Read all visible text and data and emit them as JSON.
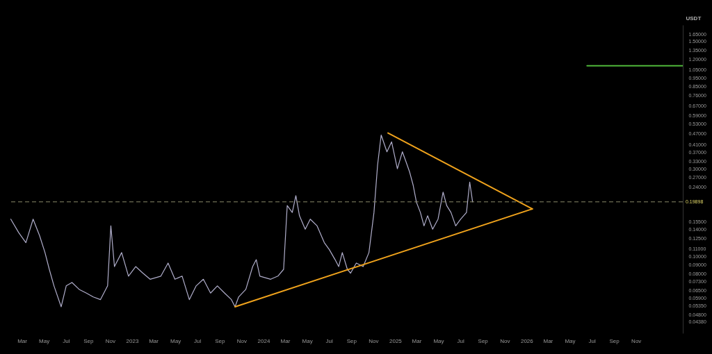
{
  "chart_data": {
    "type": "line",
    "ylabel": "USDT",
    "log": "y",
    "xlim": [
      "2022-01-27",
      "2027-03-10"
    ],
    "ylim": [
      0.038,
      1.85
    ],
    "xticks": [
      {
        "value": "2022-03",
        "label": "Mar"
      },
      {
        "value": "2022-05",
        "label": "May"
      },
      {
        "value": "2022-07",
        "label": "Jul"
      },
      {
        "value": "2022-09",
        "label": "Sep"
      },
      {
        "value": "2022-11",
        "label": "Nov"
      },
      {
        "value": "2023-01",
        "label": "2023"
      },
      {
        "value": "2023-03",
        "label": "Mar"
      },
      {
        "value": "2023-05",
        "label": "May"
      },
      {
        "value": "2023-07",
        "label": "Jul"
      },
      {
        "value": "2023-09",
        "label": "Sep"
      },
      {
        "value": "2023-11",
        "label": "Nov"
      },
      {
        "value": "2024-01",
        "label": "2024"
      },
      {
        "value": "2024-03",
        "label": "Mar"
      },
      {
        "value": "2024-05",
        "label": "May"
      },
      {
        "value": "2024-07",
        "label": "Jul"
      },
      {
        "value": "2024-09",
        "label": "Sep"
      },
      {
        "value": "2024-11",
        "label": "Nov"
      },
      {
        "value": "2025-01",
        "label": "2025"
      },
      {
        "value": "2025-03",
        "label": "Mar"
      },
      {
        "value": "2025-05",
        "label": "May"
      },
      {
        "value": "2025-07",
        "label": "Jul"
      },
      {
        "value": "2025-09",
        "label": "Sep"
      },
      {
        "value": "2025-11",
        "label": "Nov"
      },
      {
        "value": "2026-01",
        "label": "2026"
      },
      {
        "value": "2026-03",
        "label": "Mar"
      },
      {
        "value": "2026-05",
        "label": "May"
      },
      {
        "value": "2026-07",
        "label": "Jul"
      },
      {
        "value": "2026-09",
        "label": "Sep"
      },
      {
        "value": "2026-11",
        "label": "Nov"
      }
    ],
    "yticks": [
      {
        "value": 1.65,
        "label": "1.65000"
      },
      {
        "value": 1.5,
        "label": "1.50000"
      },
      {
        "value": 1.35,
        "label": "1.35000"
      },
      {
        "value": 1.2,
        "label": "1.20000"
      },
      {
        "value": 1.05,
        "label": "1.05000"
      },
      {
        "value": 0.95,
        "label": "0.95000"
      },
      {
        "value": 0.85,
        "label": "0.85000"
      },
      {
        "value": 0.76,
        "label": "0.76000"
      },
      {
        "value": 0.67,
        "label": "0.67000"
      },
      {
        "value": 0.59,
        "label": "0.59000"
      },
      {
        "value": 0.53,
        "label": "0.53000"
      },
      {
        "value": 0.47,
        "label": "0.47000"
      },
      {
        "value": 0.41,
        "label": "0.41000"
      },
      {
        "value": 0.37,
        "label": "0.37000"
      },
      {
        "value": 0.33,
        "label": "0.33000"
      },
      {
        "value": 0.3,
        "label": "0.30000"
      },
      {
        "value": 0.27,
        "label": "0.27000"
      },
      {
        "value": 0.24,
        "label": "0.24000"
      },
      {
        "value": 0.155,
        "label": "0.15500"
      },
      {
        "value": 0.14,
        "label": "0.14000"
      },
      {
        "value": 0.125,
        "label": "0.12500"
      },
      {
        "value": 0.11,
        "label": "0.11000"
      },
      {
        "value": 0.1,
        "label": "0.10000"
      },
      {
        "value": 0.09,
        "label": "0.09000"
      },
      {
        "value": 0.08,
        "label": "0.08000"
      },
      {
        "value": 0.073,
        "label": "0.07300"
      },
      {
        "value": 0.065,
        "label": "0.06500"
      },
      {
        "value": 0.059,
        "label": "0.05900"
      },
      {
        "value": 0.0535,
        "label": "0.05350"
      },
      {
        "value": 0.048,
        "label": "0.04800"
      },
      {
        "value": 0.0438,
        "label": "0.04380"
      }
    ],
    "grid": false,
    "marker": "none",
    "line_style": "solid",
    "ref_lines": [
      {
        "axis": "y",
        "value": 0.19898,
        "label": "0.19898",
        "color": "#8a8a6a",
        "line_style": "dashed"
      }
    ],
    "series": [
      {
        "color": "#b0aecb",
        "x": [
          "2022-01-28",
          "2022-02-19",
          "2022-03-11",
          "2022-03-31",
          "2022-04-18",
          "2022-05-03",
          "2022-05-15",
          "2022-05-28",
          "2022-06-17",
          "2022-07-01",
          "2022-07-17",
          "2022-08-06",
          "2022-08-26",
          "2022-09-14",
          "2022-10-04",
          "2022-10-24",
          "2022-11-02",
          "2022-11-12",
          "2022-12-02",
          "2022-12-21",
          "2023-01-10",
          "2023-01-30",
          "2023-02-19",
          "2023-03-21",
          "2023-04-10",
          "2023-04-29",
          "2023-05-19",
          "2023-06-08",
          "2023-06-27",
          "2023-07-17",
          "2023-08-06",
          "2023-08-25",
          "2023-09-14",
          "2023-10-03",
          "2023-10-13",
          "2023-10-23",
          "2023-11-12",
          "2023-12-01",
          "2023-12-11",
          "2023-12-21",
          "2024-01-20",
          "2024-02-09",
          "2024-02-25",
          "2024-03-06",
          "2024-03-20",
          "2024-03-30",
          "2024-04-09",
          "2024-04-25",
          "2024-05-09",
          "2024-05-28",
          "2024-06-17",
          "2024-07-01",
          "2024-07-17",
          "2024-07-27",
          "2024-08-06",
          "2024-08-20",
          "2024-08-29",
          "2024-09-14",
          "2024-10-03",
          "2024-10-19",
          "2024-11-02",
          "2024-11-12",
          "2024-11-22",
          "2024-12-08",
          "2024-12-21",
          "2025-01-06",
          "2025-01-20",
          "2025-01-30",
          "2025-02-09",
          "2025-02-19",
          "2025-02-28",
          "2025-03-11",
          "2025-03-21",
          "2025-03-31",
          "2025-04-14",
          "2025-04-29",
          "2025-05-13",
          "2025-05-23",
          "2025-06-04",
          "2025-06-17",
          "2025-07-01",
          "2025-07-17",
          "2025-07-26",
          "2025-08-03"
        ],
        "values": [
          0.16,
          0.135,
          0.119,
          0.16,
          0.13,
          0.105,
          0.085,
          0.069,
          0.053,
          0.069,
          0.072,
          0.066,
          0.063,
          0.06,
          0.058,
          0.069,
          0.147,
          0.088,
          0.105,
          0.078,
          0.088,
          0.081,
          0.075,
          0.078,
          0.092,
          0.075,
          0.078,
          0.058,
          0.069,
          0.075,
          0.063,
          0.069,
          0.063,
          0.058,
          0.053,
          0.06,
          0.066,
          0.088,
          0.096,
          0.078,
          0.075,
          0.078,
          0.085,
          0.19,
          0.174,
          0.215,
          0.167,
          0.141,
          0.16,
          0.147,
          0.119,
          0.109,
          0.096,
          0.088,
          0.105,
          0.085,
          0.081,
          0.092,
          0.088,
          0.105,
          0.174,
          0.316,
          0.462,
          0.374,
          0.424,
          0.302,
          0.374,
          0.33,
          0.29,
          0.245,
          0.198,
          0.174,
          0.147,
          0.167,
          0.141,
          0.16,
          0.225,
          0.19,
          0.174,
          0.147,
          0.16,
          0.174,
          0.255,
          0.199
        ]
      },
      {
        "type": "line",
        "color": "#f0a31c",
        "x": [
          "2023-10-13",
          "2026-01-16"
        ],
        "values": [
          0.053,
          0.182
        ]
      },
      {
        "type": "line",
        "color": "#f0a31c",
        "x": [
          "2024-12-11",
          "2026-01-16"
        ],
        "values": [
          0.474,
          0.182
        ]
      },
      {
        "type": "line",
        "color": "#4fb83a",
        "x": [
          "2026-06-17",
          "2027-03-10"
        ],
        "values": [
          1.106,
          1.106
        ]
      }
    ]
  }
}
